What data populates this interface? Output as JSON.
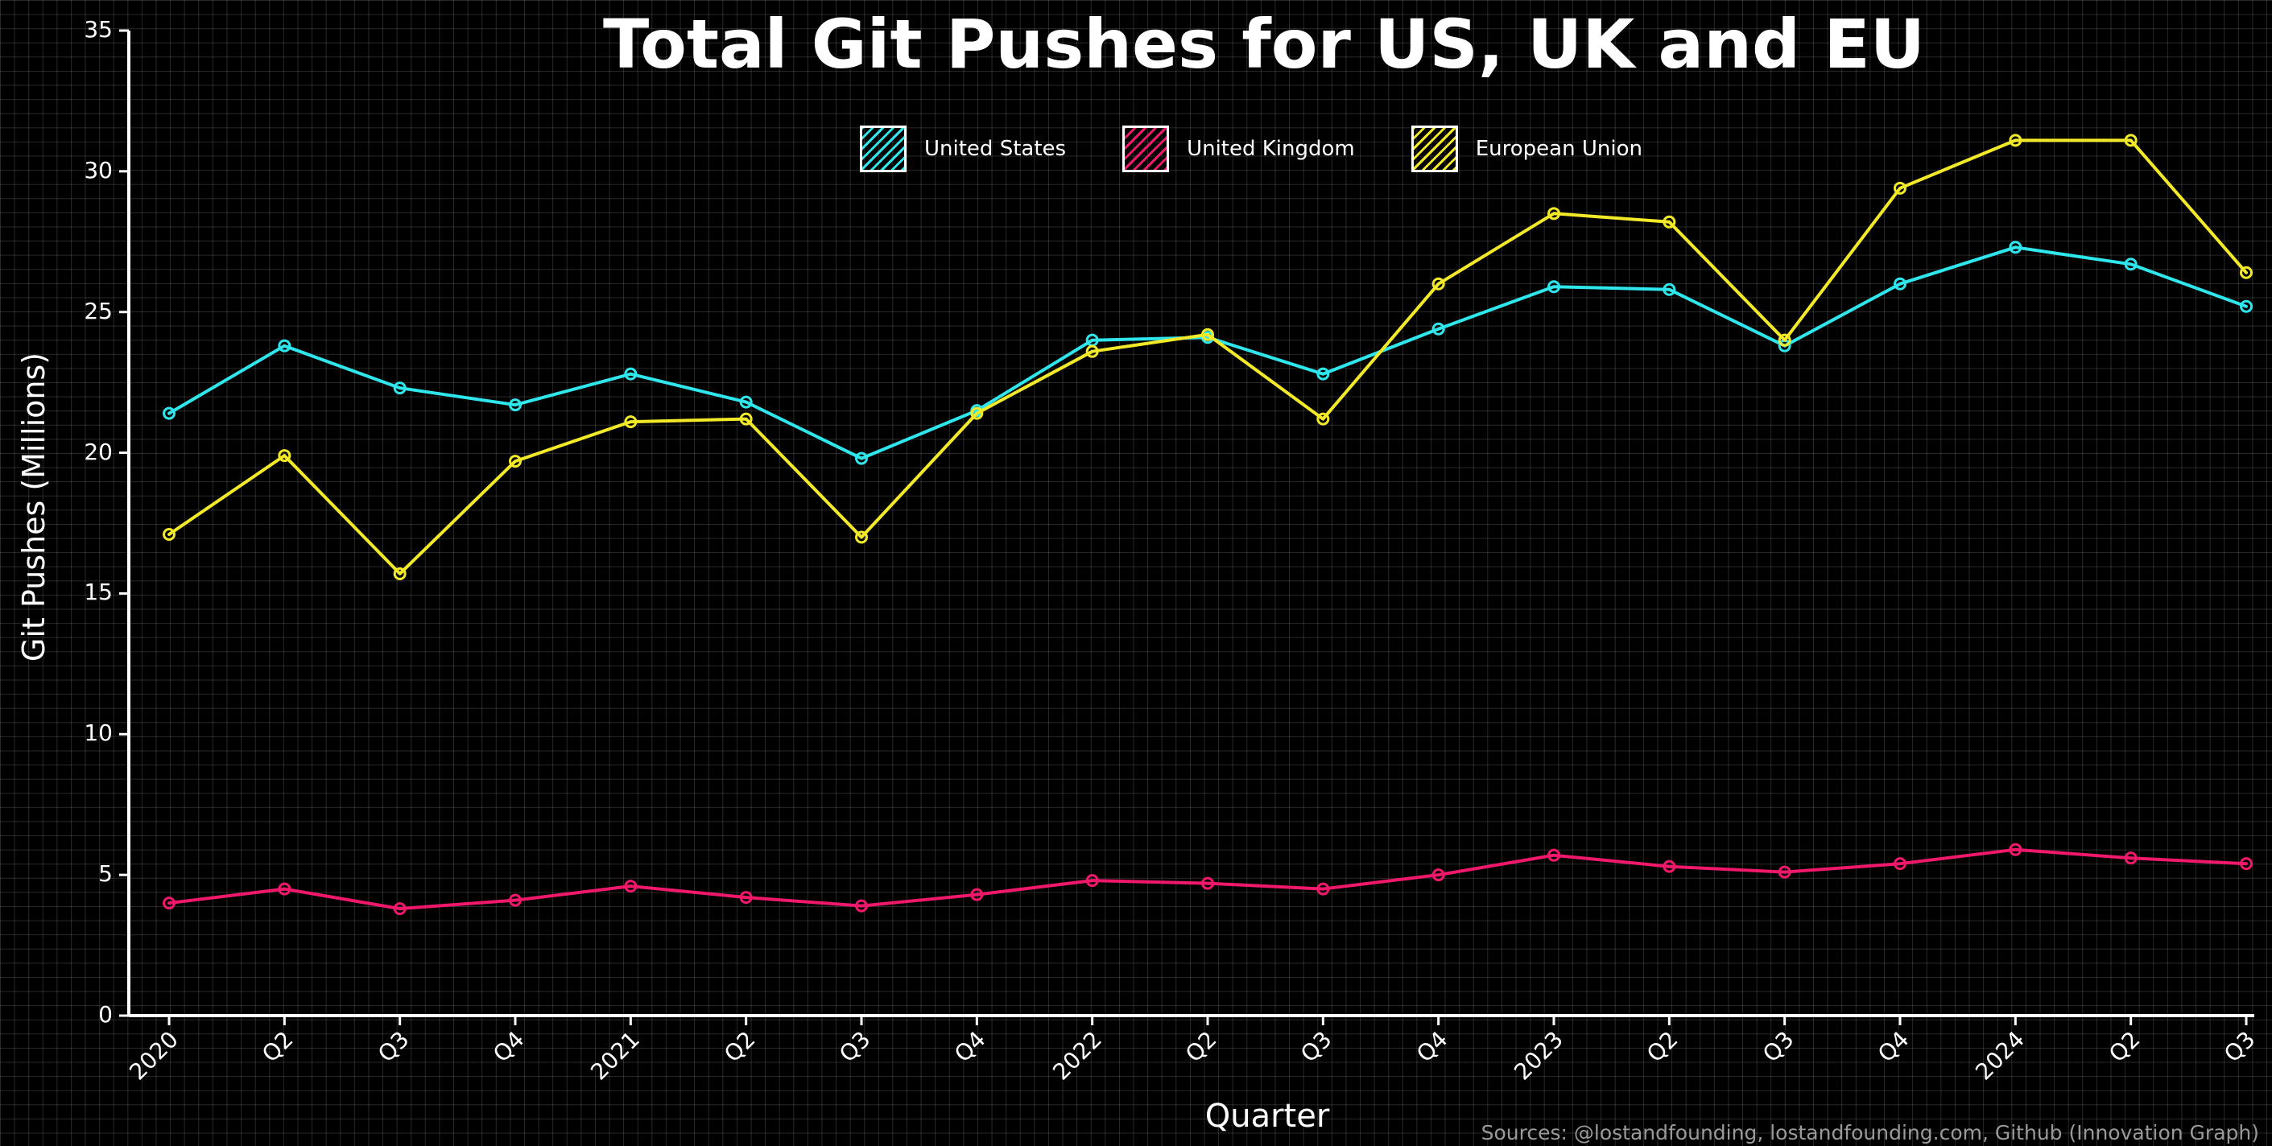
{
  "chart_data": {
    "type": "line",
    "title": "Total Git Pushes for US, UK and EU",
    "xlabel": "Quarter",
    "ylabel": "Git Pushes (Millions)",
    "ylim": [
      0,
      35
    ],
    "yticks": [
      "0",
      "5",
      "10",
      "15",
      "20",
      "25",
      "30",
      "35"
    ],
    "grid": true,
    "legend_position": "top-center",
    "categories": [
      "2020",
      "Q2",
      "Q3",
      "Q4",
      "2021",
      "Q2",
      "Q3",
      "Q4",
      "2022",
      "Q2",
      "Q3",
      "Q4",
      "2023",
      "Q2",
      "Q3",
      "Q4",
      "2024",
      "Q2",
      "Q3"
    ],
    "series": [
      {
        "name": "United States",
        "color": "#2ee6ec",
        "values": [
          21.4,
          23.8,
          22.3,
          21.7,
          22.8,
          21.8,
          19.8,
          21.5,
          24.0,
          24.1,
          22.8,
          24.4,
          25.9,
          25.8,
          23.8,
          26.0,
          27.3,
          26.7,
          25.2
        ]
      },
      {
        "name": "United Kingdom",
        "color": "#f0186a",
        "values": [
          4.0,
          4.5,
          3.8,
          4.1,
          4.6,
          4.2,
          3.9,
          4.3,
          4.8,
          4.7,
          4.5,
          5.0,
          5.7,
          5.3,
          5.1,
          5.4,
          5.9,
          5.6,
          5.4
        ]
      },
      {
        "name": "European Union",
        "color": "#f2e928",
        "values": [
          17.1,
          19.9,
          15.7,
          19.7,
          21.1,
          21.2,
          17.0,
          21.4,
          23.6,
          24.2,
          21.2,
          26.0,
          28.5,
          28.2,
          24.0,
          29.4,
          31.1,
          31.1,
          26.4
        ]
      }
    ],
    "source": "Sources: @lostandfounding, lostandfounding.com, Github (Innovation Graph)"
  }
}
